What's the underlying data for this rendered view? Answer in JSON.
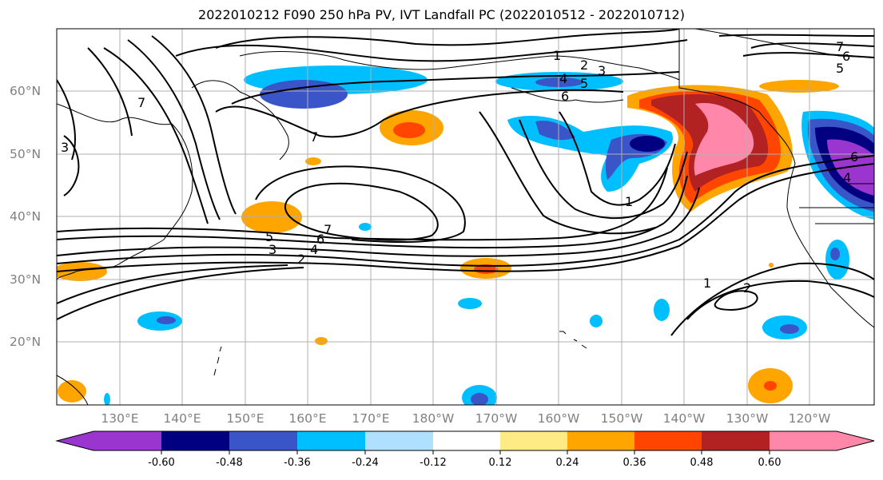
{
  "title": "2022010212 F090 250 hPa PV, IVT Landfall PC (2022010512 - 2022010712)",
  "lon_labels": [
    "130°E",
    "140°E",
    "150°E",
    "160°E",
    "170°E",
    "180°W",
    "170°W",
    "160°W",
    "150°W",
    "140°W",
    "130°W",
    "120°W"
  ],
  "lat_labels": [
    "60°N",
    "50°N",
    "40°N",
    "30°N",
    "20°N"
  ],
  "colorbar": {
    "ticks": [
      "-0.60",
      "-0.48",
      "-0.36",
      "-0.24",
      "-0.12",
      "0.12",
      "0.24",
      "0.36",
      "0.48",
      "0.60"
    ],
    "colors": [
      "#9a35d0",
      "#000080",
      "#3a55c8",
      "#00bfff",
      "#b0e0ff",
      "#ffffff",
      "#ffeb85",
      "#ffa500",
      "#ff4500",
      "#b22222",
      "#ff88aa"
    ]
  },
  "contour_labels": [
    "1",
    "2",
    "3",
    "4",
    "5",
    "6",
    "7"
  ]
}
